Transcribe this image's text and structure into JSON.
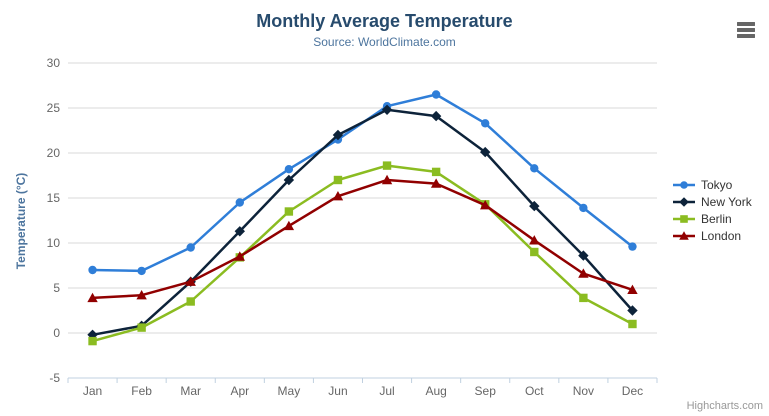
{
  "chart": {
    "credit": "Highcharts.com",
    "icons": {
      "export_menu": "hamburger-icon"
    },
    "style_colors": {
      "title": "#274b6d",
      "subtitle": "#4d759e",
      "axis_title": "#4d759e",
      "axis_label": "#666666",
      "grid_line": "#d8d8d8",
      "axis_line": "#c0d0e0",
      "legend_text": "#333333",
      "credit": "#999999",
      "export_icon": "#666666"
    }
  },
  "chart_data": {
    "type": "line",
    "title": "Monthly Average Temperature",
    "subtitle": "Source: WorldClimate.com",
    "xlabel": "",
    "ylabel": "Temperature (°C)",
    "ylim": [
      -5,
      30
    ],
    "ytick_interval": 5,
    "grid": true,
    "legend_position": "right",
    "categories": [
      "Jan",
      "Feb",
      "Mar",
      "Apr",
      "May",
      "Jun",
      "Jul",
      "Aug",
      "Sep",
      "Oct",
      "Nov",
      "Dec"
    ],
    "series": [
      {
        "name": "Tokyo",
        "color": "#2f7ed8",
        "marker": "circle",
        "values": [
          7.0,
          6.9,
          9.5,
          14.5,
          18.2,
          21.5,
          25.2,
          26.5,
          23.3,
          18.3,
          13.9,
          9.6
        ]
      },
      {
        "name": "New York",
        "color": "#0d233a",
        "marker": "diamond",
        "values": [
          -0.2,
          0.8,
          5.7,
          11.3,
          17.0,
          22.0,
          24.8,
          24.1,
          20.1,
          14.1,
          8.6,
          2.5
        ]
      },
      {
        "name": "Berlin",
        "color": "#8bbc21",
        "marker": "square",
        "values": [
          -0.9,
          0.6,
          3.5,
          8.4,
          13.5,
          17.0,
          18.6,
          17.9,
          14.3,
          9.0,
          3.9,
          1.0
        ]
      },
      {
        "name": "London",
        "color": "#910000",
        "marker": "triangle",
        "values": [
          3.9,
          4.2,
          5.7,
          8.5,
          11.9,
          15.2,
          17.0,
          16.6,
          14.2,
          10.3,
          6.6,
          4.8
        ]
      }
    ]
  }
}
